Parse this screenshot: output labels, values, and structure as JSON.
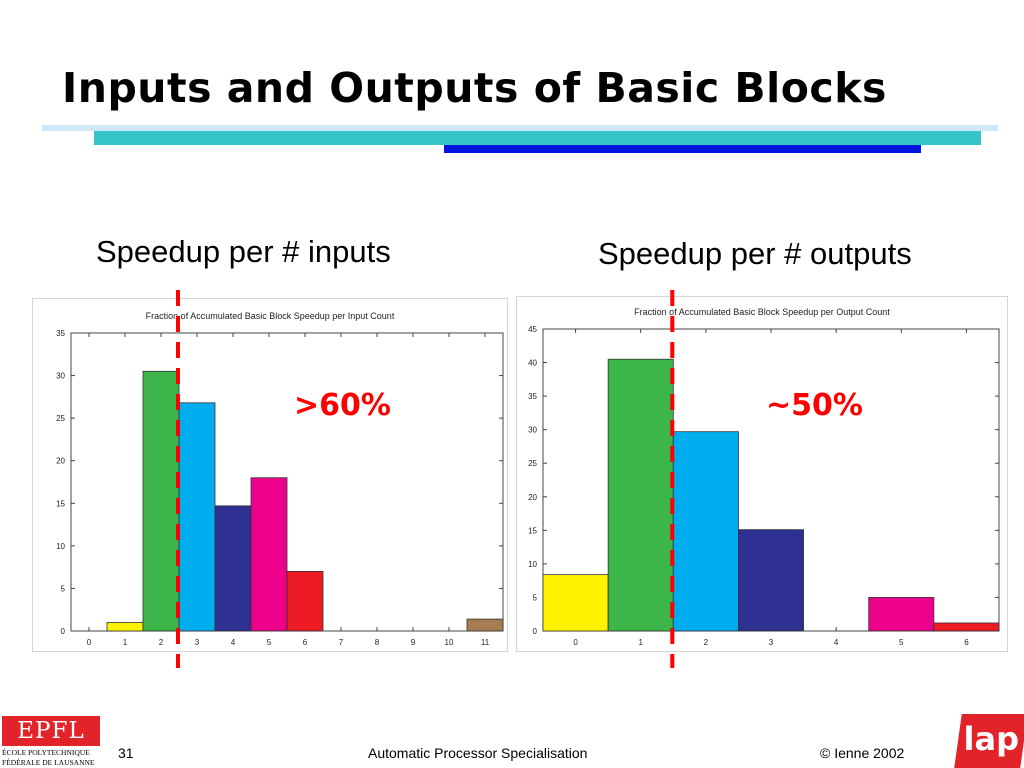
{
  "slide": {
    "title": "Inputs and Outputs of Basic Blocks",
    "left_heading": "Speedup per # inputs",
    "right_heading": "Speedup per # outputs",
    "left_callout": ">60%",
    "right_callout": "~50%",
    "page_number": "31",
    "footer_center": "Automatic Processor Specialisation",
    "footer_right": "© Ienne 2002",
    "logo_left_mark": "EPFL",
    "logo_left_line1": "ÉCOLE POLYTECHNIQUE",
    "logo_left_line2": "FÉDÉRALE DE LAUSANNE",
    "logo_right_mark": "lap",
    "colors": {
      "accent_red": "#ff0000",
      "teal": "#33c5c9",
      "blue": "#0016e0",
      "light_blue": "#cfe6f5"
    }
  },
  "chart_data": [
    {
      "type": "bar",
      "title": "Fraction of Accumulated Basic Block Speedup per Input Count",
      "xlabel": "",
      "ylabel": "",
      "categories": [
        "0",
        "1",
        "2",
        "3",
        "4",
        "5",
        "6",
        "7",
        "8",
        "9",
        "10",
        "11"
      ],
      "values": [
        0,
        1,
        30.5,
        26.8,
        14.7,
        18,
        7,
        0,
        0,
        0,
        0,
        1.4
      ],
      "colors": [
        "#ffffff",
        "#fff200",
        "#3cb64a",
        "#00aeef",
        "#2e3192",
        "#ec008c",
        "#ed1c24",
        "#ffffff",
        "#ffffff",
        "#ffffff",
        "#ffffff",
        "#a67c52"
      ],
      "ylim": [
        0,
        35
      ],
      "yticks": [
        0,
        5,
        10,
        15,
        20,
        25,
        30,
        35
      ],
      "divider_after_category": "2",
      "grid": false
    },
    {
      "type": "bar",
      "title": "Fraction of Accumulated Basic Block Speedup per Output Count",
      "xlabel": "",
      "ylabel": "",
      "categories": [
        "0",
        "1",
        "2",
        "3",
        "4",
        "5",
        "6"
      ],
      "values": [
        8.4,
        40.5,
        29.7,
        15.1,
        0,
        5,
        1.2
      ],
      "colors": [
        "#fff200",
        "#3cb64a",
        "#00aeef",
        "#2e3192",
        "#ffffff",
        "#ec008c",
        "#ed1c24"
      ],
      "ylim": [
        0,
        45
      ],
      "yticks": [
        0,
        5,
        10,
        15,
        20,
        25,
        30,
        35,
        40,
        45
      ],
      "divider_after_category": "1",
      "grid": false
    }
  ]
}
